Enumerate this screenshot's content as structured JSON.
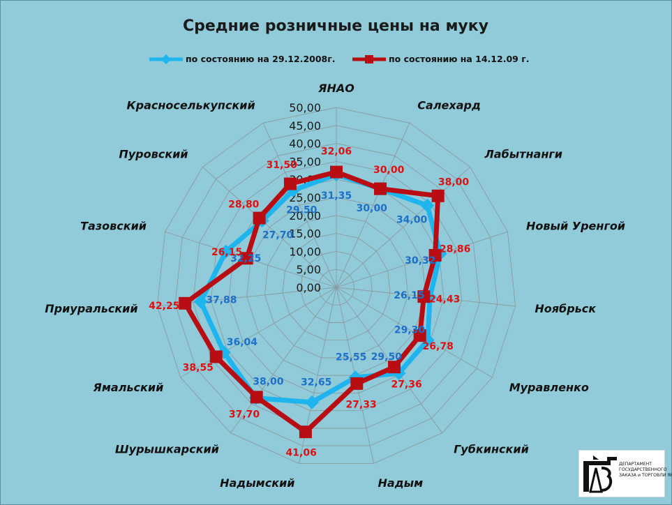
{
  "chart_data": {
    "type": "radar",
    "title": "Средние розничные цены на муку",
    "categories": [
      "ЯНАО",
      "Салехард",
      "Лабытнанги",
      "Новый Уренгой",
      "Ноябрьск",
      "Муравленко",
      "Губкинский",
      "Надым",
      "Надымский",
      "Шурышкарский",
      "Ямальский",
      "Приуральский",
      "Тазовский",
      "Пуровский",
      "Красноселькупский"
    ],
    "series": [
      {
        "name": "по состоянию на 29.12.2008г.",
        "color": "#1eb4ee",
        "label_color": "#1e6fc8",
        "marker": "diamond",
        "values": [
          31.35,
          30.0,
          34.0,
          30.32,
          26.15,
          29.3,
          29.5,
          25.55,
          32.65,
          38.0,
          36.04,
          37.88,
          32.25,
          27.7,
          29.5
        ],
        "labels": [
          "31,35",
          "30,00",
          "34,00",
          "30,32",
          "26,15",
          "29,30",
          "29,50",
          "25,55",
          "32,65",
          "38,00",
          "36,04",
          "37,88",
          "32,25",
          "27,70",
          "29,50"
        ]
      },
      {
        "name": "по состоянию на 14.12.09 г.",
        "color": "#b80d13",
        "label_color": "#e01010",
        "marker": "square",
        "values": [
          32.06,
          30.0,
          38.0,
          28.86,
          24.43,
          26.78,
          27.36,
          27.33,
          41.06,
          37.7,
          38.55,
          42.25,
          26.15,
          28.8,
          31.5
        ],
        "labels": [
          "32,06",
          "30,00",
          "38,00",
          "28,86",
          "24,43",
          "26,78",
          "27,36",
          "27,33",
          "41,06",
          "37,70",
          "38,55",
          "42,25",
          "26,15",
          "28,80",
          "31,50"
        ]
      }
    ],
    "rlim": [
      0,
      50
    ],
    "ticks": [
      0,
      5,
      10,
      15,
      20,
      25,
      30,
      35,
      40,
      45,
      50
    ],
    "tick_labels": [
      "0,00",
      "5,00",
      "10,00",
      "15,00",
      "20,00",
      "25,00",
      "30,00",
      "35,00",
      "40,00",
      "45,00",
      "50,00"
    ],
    "grid": true,
    "legend_position": "top"
  },
  "logo": {
    "lines": [
      "ДЕПАРТАМЕНТ",
      "ГОСУДАРСТВЕННОГО",
      "ЗАКАЗА и ТОРГОВЛИ ЯНАО"
    ]
  }
}
